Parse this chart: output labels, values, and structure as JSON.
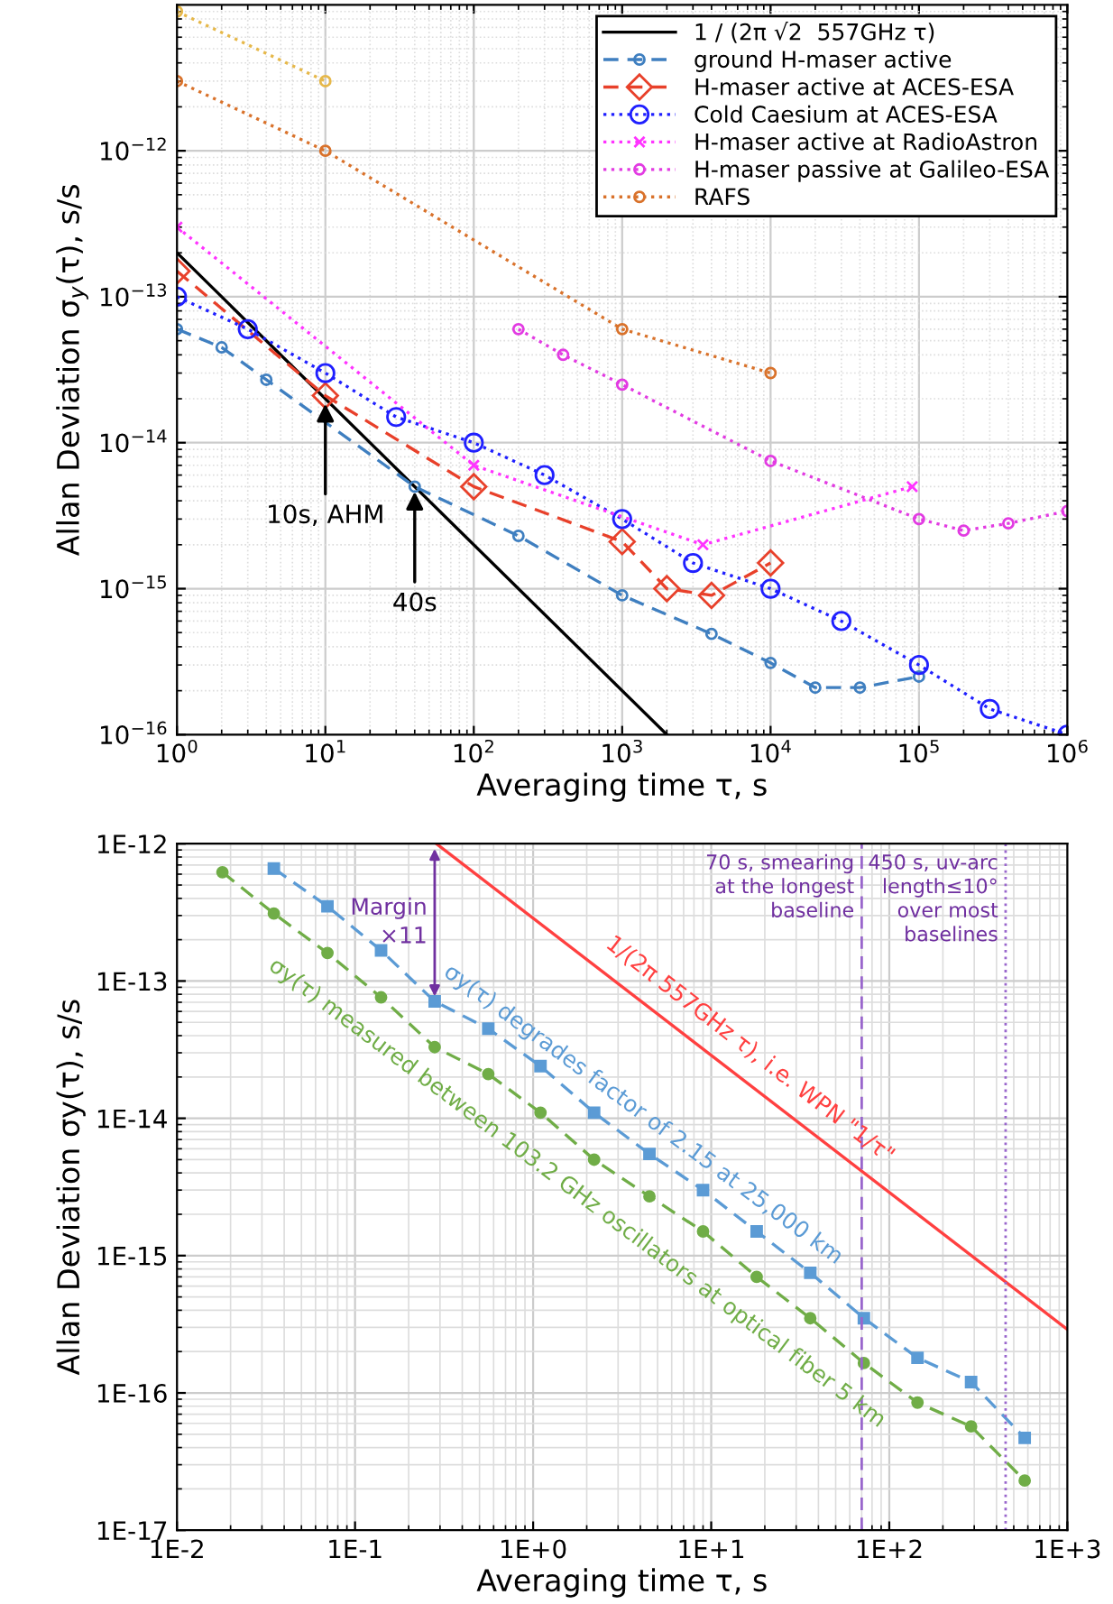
{
  "chart_data": [
    {
      "type": "line",
      "xlabel": "Averaging time τ, s",
      "ylabel": "Allan Deviation σ$_{y}$(τ), s/s",
      "log": "xy",
      "grid": true,
      "legend": "top right",
      "xlim": [
        1,
        1000000
      ],
      "ylim": [
        1e-16,
        1e-11
      ],
      "xticks": [
        {
          "value": 1,
          "label": "10$^{0}$"
        },
        {
          "value": 10,
          "label": "10$^{1}$"
        },
        {
          "value": 100,
          "label": "10$^{2}$"
        },
        {
          "value": 1000,
          "label": "10$^{3}$"
        },
        {
          "value": 10000,
          "label": "10$^{4}$"
        },
        {
          "value": 100000,
          "label": "10$^{5}$"
        },
        {
          "value": 1000000,
          "label": "10$^{6}$"
        }
      ],
      "yticks": [
        {
          "value": 1e-16,
          "label": "10$^{−16}$"
        },
        {
          "value": 1e-15,
          "label": "10$^{−15}$"
        },
        {
          "value": 1e-14,
          "label": "10$^{−14}$"
        },
        {
          "value": 1e-13,
          "label": "10$^{−13}$"
        },
        {
          "value": 1e-12,
          "label": "10$^{−12}$"
        },
        {
          "value": null,
          "label": null
        }
      ],
      "series": [
        {
          "name": "1 / (2π √2  557GHz τ)",
          "color": "#000000",
          "line_style": "solid",
          "marker": "none",
          "x": [
            1,
            2000
          ],
          "values": [
            2e-13,
            1e-16
          ]
        },
        {
          "name": "ground H-maser active",
          "color": "#3f7fc0",
          "line_style": "dashed",
          "marker": "circle",
          "x": [
            1,
            2,
            4,
            40,
            200,
            1000,
            4000,
            10000,
            20000,
            40000,
            100000
          ],
          "values": [
            6e-14,
            4.5e-14,
            2.7e-14,
            5e-15,
            2.3e-15,
            9e-16,
            4.9e-16,
            3.1e-16,
            2.1e-16,
            2.1e-16,
            2.5e-16
          ]
        },
        {
          "name": "H-maser active at ACES-ESA",
          "color": "#e8402a",
          "line_style": "dashed",
          "marker": "diamond",
          "x": [
            1,
            10,
            100,
            1000,
            2000,
            4000,
            10000
          ],
          "values": [
            1.5e-13,
            2.1e-14,
            5e-15,
            2.1e-15,
            1e-15,
            9e-16,
            1.5e-15
          ]
        },
        {
          "name": "Cold Caesium at ACES-ESA",
          "color": "#1f1fff",
          "line_style": "dotted",
          "marker": "circle",
          "x": [
            1,
            3,
            10,
            30,
            100,
            300,
            1000,
            3000,
            10000,
            30000,
            100000,
            300000,
            1000000
          ],
          "values": [
            1e-13,
            6e-14,
            3e-14,
            1.5e-14,
            1e-14,
            6e-15,
            3e-15,
            1.5e-15,
            1e-15,
            6e-16,
            3e-16,
            1.5e-16,
            1e-16
          ]
        },
        {
          "name": "H-maser active at RadioAstron",
          "color": "#ff33ff",
          "line_style": "dotted",
          "marker": "cross",
          "x": [
            1,
            100,
            3500,
            90000
          ],
          "values": [
            3e-13,
            7e-15,
            2e-15,
            5e-15
          ]
        },
        {
          "name": "H-maser passive at Galileo-ESA",
          "color": "#e23be2",
          "line_style": "dotted",
          "marker": "circle",
          "x": [
            200,
            400,
            1000,
            10000,
            100000,
            200000,
            400000,
            1000000
          ],
          "values": [
            6e-14,
            4e-14,
            2.5e-14,
            7.5e-15,
            3e-15,
            2.5e-15,
            2.8e-15,
            3.4e-15
          ]
        },
        {
          "name": "RAFS",
          "color": "#d9722b",
          "line_style": "dotted",
          "marker": "circle",
          "x": [
            1,
            10,
            1000,
            10000
          ],
          "values": [
            3e-12,
            1e-12,
            6e-14,
            3e-14
          ]
        },
        {
          "color": "#e6b84a",
          "line_style": "dotted",
          "marker": "circle",
          "x": [
            1,
            10
          ],
          "values": [
            9e-12,
            3e-12
          ]
        }
      ],
      "annotations": [
        {
          "text": "10s, AHM",
          "x": 10,
          "y": 2e-14
        },
        {
          "text": "40s",
          "x": 40,
          "y": 5e-15
        }
      ]
    },
    {
      "type": "line",
      "xlabel": "Averaging time τ, s",
      "ylabel": "Allan Deviation σy(τ), s/s",
      "log": "xy",
      "grid": true,
      "xlim": [
        0.01,
        1000
      ],
      "ylim": [
        1e-17,
        1e-12
      ],
      "xticks": [
        {
          "value": 0.01,
          "label": "1E-2"
        },
        {
          "value": 0.1,
          "label": "1E-1"
        },
        {
          "value": 1,
          "label": "1E+0"
        },
        {
          "value": 10,
          "label": "1E+1"
        },
        {
          "value": 100,
          "label": "1E+2"
        },
        {
          "value": 1000,
          "label": "1E+3"
        }
      ],
      "yticks": [
        {
          "value": 1e-17,
          "label": "1E-17"
        },
        {
          "value": 1e-16,
          "label": "1E-16"
        },
        {
          "value": 1e-15,
          "label": "1E-15"
        },
        {
          "value": 1e-14,
          "label": "1E-14"
        },
        {
          "value": 1e-13,
          "label": "1E-13"
        },
        {
          "value": 1e-12,
          "label": "1E-12"
        }
      ],
      "series": [
        {
          "name": "1/(2π 557GHz τ), i.e. WPN \"1/τ\"",
          "color": "#ff4040",
          "line_style": "solid",
          "marker": "none",
          "x": [
            0.286,
            1000
          ],
          "values": [
            1e-12,
            2.9e-16
          ]
        },
        {
          "name": "σy(τ) degrades factor of 2.15 at 25,000 km",
          "color": "#5b9bd5",
          "line_style": "dashed",
          "marker": "square",
          "x": [
            0.035,
            0.07,
            0.14,
            0.28,
            0.56,
            1.1,
            2.2,
            4.5,
            9,
            18,
            36,
            72,
            144,
            288,
            576
          ],
          "values": [
            6.6e-13,
            3.5e-13,
            1.67e-13,
            7.1e-14,
            4.5e-14,
            2.4e-14,
            1.1e-14,
            5.5e-15,
            3e-15,
            1.5e-15,
            7.5e-16,
            3.5e-16,
            1.8e-16,
            1.2e-16,
            4.7e-17
          ]
        },
        {
          "name": "σy(τ) measured between 103.2 GHz oscillators at optical fiber 5 km",
          "color": "#70ad47",
          "line_style": "dashed",
          "marker": "circle",
          "x": [
            0.018,
            0.035,
            0.07,
            0.14,
            0.28,
            0.56,
            1.1,
            2.2,
            4.5,
            9,
            18,
            36,
            72,
            144,
            288,
            576
          ],
          "values": [
            6.2e-13,
            3.1e-13,
            1.6e-13,
            7.6e-14,
            3.3e-14,
            2.1e-14,
            1.1e-14,
            5e-15,
            2.7e-15,
            1.5e-15,
            7e-16,
            3.5e-16,
            1.65e-16,
            8.5e-17,
            5.7e-17,
            2.3e-17
          ]
        }
      ],
      "ref_lines": [
        {
          "axis": "x",
          "value": 70,
          "label": "70 s, smearing\nat the longest\nbaseline",
          "color": "#9966cc",
          "line_style": "dashed"
        },
        {
          "axis": "x",
          "value": 450,
          "label": "450 s, uv-arc\nlength≤10°\nover most\nbaselines",
          "color": "#9966cc",
          "line_style": "dotted"
        }
      ],
      "annotations": [
        "Margin\n×11"
      ]
    }
  ]
}
